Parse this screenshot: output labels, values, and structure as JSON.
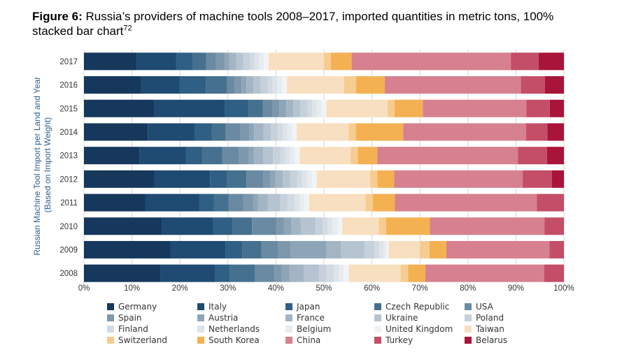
{
  "title": {
    "prefix": "Figure 6:",
    "text": " Russia’s providers of machine tools 2008–2017, imported quantities in metric tons, 100% stacked bar chart",
    "footnote": "72"
  },
  "chart_data": {
    "type": "bar",
    "orientation": "horizontal",
    "stacked": "100%",
    "ylabel_line1": "Russian Machine Tool Import per Land and Year",
    "ylabel_line2": "(Based on Import Weight)",
    "categories": [
      "2017",
      "2016",
      "2015",
      "2014",
      "2013",
      "2012",
      "2011",
      "2010",
      "2009",
      "2008"
    ],
    "xticks": [
      "0%",
      "10%",
      "20%",
      "30%",
      "40%",
      "50%",
      "60%",
      "70%",
      "80%",
      "90%",
      "100%"
    ],
    "xlim": [
      0,
      100
    ],
    "grid": true,
    "legend_position": "bottom",
    "series": [
      {
        "name": "Germany",
        "color": "#16385c",
        "values": [
          11.5,
          12.0,
          15.0,
          13.5,
          11.5,
          14.5,
          12.5,
          16.0,
          18.0,
          15.5
        ]
      },
      {
        "name": "Italy",
        "color": "#1f4a72",
        "values": [
          8.5,
          8.0,
          15.0,
          10.0,
          9.5,
          11.5,
          11.0,
          10.5,
          11.5,
          11.0
        ]
      },
      {
        "name": "Japan",
        "color": "#2f5f85",
        "values": [
          3.5,
          5.5,
          5.0,
          3.5,
          3.5,
          3.5,
          3.0,
          4.0,
          3.5,
          3.0
        ]
      },
      {
        "name": "Czech Republic",
        "color": "#46708f",
        "values": [
          3.0,
          4.5,
          3.0,
          3.0,
          4.0,
          4.0,
          3.0,
          4.0,
          4.0,
          5.0
        ]
      },
      {
        "name": "USA",
        "color": "#6a8aa3",
        "values": [
          2.0,
          1.5,
          2.0,
          3.0,
          3.5,
          3.5,
          3.0,
          5.0,
          3.5,
          4.0
        ]
      },
      {
        "name": "Spain",
        "color": "#7d97ad",
        "values": [
          2.0,
          1.5,
          1.5,
          2.0,
          2.0,
          1.5,
          2.0,
          1.5,
          2.5,
          1.5
        ]
      },
      {
        "name": "Austria",
        "color": "#8ea5b8",
        "values": [
          1.0,
          1.0,
          1.5,
          1.0,
          1.0,
          1.0,
          1.0,
          1.5,
          7.5,
          1.5
        ]
      },
      {
        "name": "France",
        "color": "#a3b5c4",
        "values": [
          1.5,
          1.5,
          1.5,
          2.0,
          2.0,
          1.5,
          2.0,
          2.0,
          3.0,
          3.0
        ]
      },
      {
        "name": "Ukraine",
        "color": "#b5c4d0",
        "values": [
          1.5,
          1.5,
          1.5,
          1.5,
          2.0,
          1.5,
          2.5,
          3.0,
          5.0,
          3.0
        ]
      },
      {
        "name": "Poland",
        "color": "#c6d1db",
        "values": [
          1.5,
          1.5,
          1.5,
          1.5,
          1.5,
          1.5,
          1.5,
          1.5,
          2.0,
          1.5
        ]
      },
      {
        "name": "Finland",
        "color": "#d2dbe3",
        "values": [
          1.0,
          1.0,
          1.0,
          1.0,
          1.0,
          1.0,
          1.5,
          1.0,
          1.0,
          1.5
        ]
      },
      {
        "name": "Netherlands",
        "color": "#dde4ea",
        "values": [
          1.0,
          1.0,
          1.0,
          1.0,
          1.0,
          1.0,
          1.0,
          1.0,
          1.0,
          1.0
        ]
      },
      {
        "name": "Belgium",
        "color": "#e7ecf0",
        "values": [
          1.0,
          1.0,
          1.0,
          1.0,
          1.0,
          1.0,
          1.0,
          1.0,
          0.5,
          1.0
        ]
      },
      {
        "name": "United Kingdom",
        "color": "#f1f4f6",
        "values": [
          1.0,
          1.0,
          1.0,
          1.0,
          1.0,
          1.0,
          1.0,
          1.0,
          0.5,
          1.0
        ]
      },
      {
        "name": "Taiwan",
        "color": "#f8dfbf",
        "values": [
          12.0,
          12.0,
          13.0,
          11.0,
          10.5,
          11.0,
          11.5,
          7.5,
          6.5,
          10.5
        ]
      },
      {
        "name": "Switzerland",
        "color": "#f6cc90",
        "values": [
          1.5,
          2.5,
          1.5,
          1.5,
          1.5,
          1.5,
          1.5,
          1.5,
          2.0,
          1.5
        ]
      },
      {
        "name": "South Korea",
        "color": "#f4b152",
        "values": [
          4.5,
          6.0,
          6.0,
          10.0,
          4.0,
          3.5,
          4.5,
          9.0,
          3.5,
          3.5
        ]
      },
      {
        "name": "China",
        "color": "#d7808f",
        "values": [
          34.5,
          28.5,
          22.0,
          26.0,
          29.0,
          26.5,
          29.0,
          23.5,
          21.5,
          24.0
        ]
      },
      {
        "name": "Turkey",
        "color": "#c44d68",
        "values": [
          6.0,
          5.0,
          5.0,
          4.5,
          6.0,
          6.0,
          5.5,
          4.0,
          3.0,
          4.0
        ]
      },
      {
        "name": "Belarus",
        "color": "#a8143a",
        "values": [
          5.5,
          4.0,
          3.0,
          3.5,
          3.5,
          2.5,
          0.0,
          0.0,
          0.0,
          0.0
        ]
      }
    ]
  }
}
